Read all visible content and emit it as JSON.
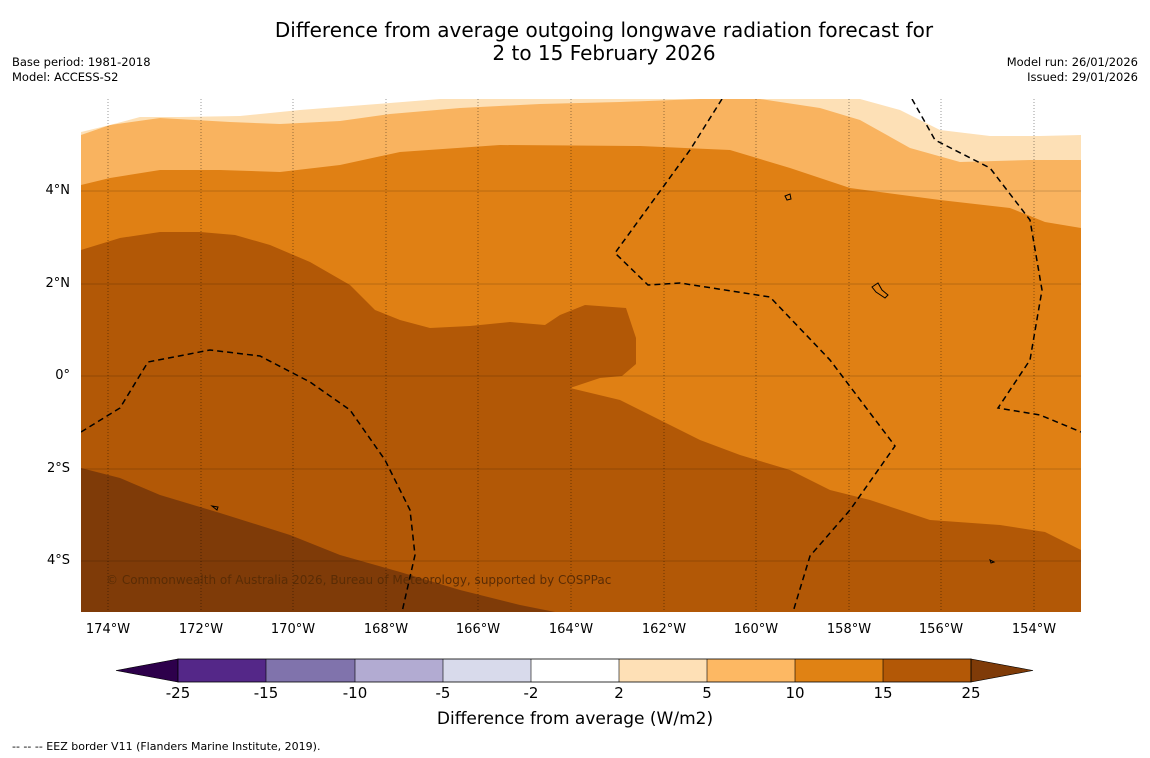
{
  "title": {
    "line1": "Difference from average outgoing longwave radiation forecast for",
    "line2": "2 to 15 February 2026"
  },
  "meta_left": {
    "base_period": "Base period: 1981-2018",
    "model": "Model: ACCESS-S2"
  },
  "meta_right": {
    "model_run": "Model run: 26/01/2026",
    "issued": "Issued: 29/01/2026"
  },
  "map": {
    "lon_range": [
      -174.6,
      -153.0
    ],
    "lat_range": [
      -5.1,
      5.9
    ],
    "lat_ticks": [
      {
        "value": 4,
        "label": "4°N"
      },
      {
        "value": 2,
        "label": "2°N"
      },
      {
        "value": 0,
        "label": "0°"
      },
      {
        "value": -2,
        "label": "2°S"
      },
      {
        "value": -4,
        "label": "4°S"
      }
    ],
    "lon_ticks": [
      {
        "value": -174,
        "label": "174°W"
      },
      {
        "value": -172,
        "label": "172°W"
      },
      {
        "value": -170,
        "label": "170°W"
      },
      {
        "value": -168,
        "label": "168°W"
      },
      {
        "value": -166,
        "label": "166°W"
      },
      {
        "value": -164,
        "label": "164°W"
      },
      {
        "value": -162,
        "label": "162°W"
      },
      {
        "value": -160,
        "label": "160°W"
      },
      {
        "value": -158,
        "label": "158°W"
      },
      {
        "value": -156,
        "label": "156°W"
      },
      {
        "value": -154,
        "label": "154°W"
      }
    ],
    "copyright": "© Commonwealth of Australia 2026, Bureau of Meteorology, supported by COSPPac",
    "band_colors": {
      "2_to_5": "#fde0b6",
      "5_to_10": "#f9b35f",
      "10_to_15": "#e08014",
      "15_to_25": "#b25806",
      "above_25": "#7f3b08"
    }
  },
  "colorbar": {
    "ticks": [
      "-25",
      "-15",
      "-10",
      "-5",
      "-2",
      "2",
      "5",
      "10",
      "15",
      "25"
    ],
    "under_color": "#2d004b",
    "over_color": "#7f3b08",
    "colors": [
      "#542788",
      "#8073ac",
      "#b2abd2",
      "#d8daeb",
      "#ffffff",
      "#fee0b6",
      "#fdb863",
      "#e08214",
      "#b35806"
    ],
    "label": "Difference from average (W/m2)"
  },
  "footer": "--  --  -- EEZ border V11 (Flanders Marine Institute, 2019)."
}
